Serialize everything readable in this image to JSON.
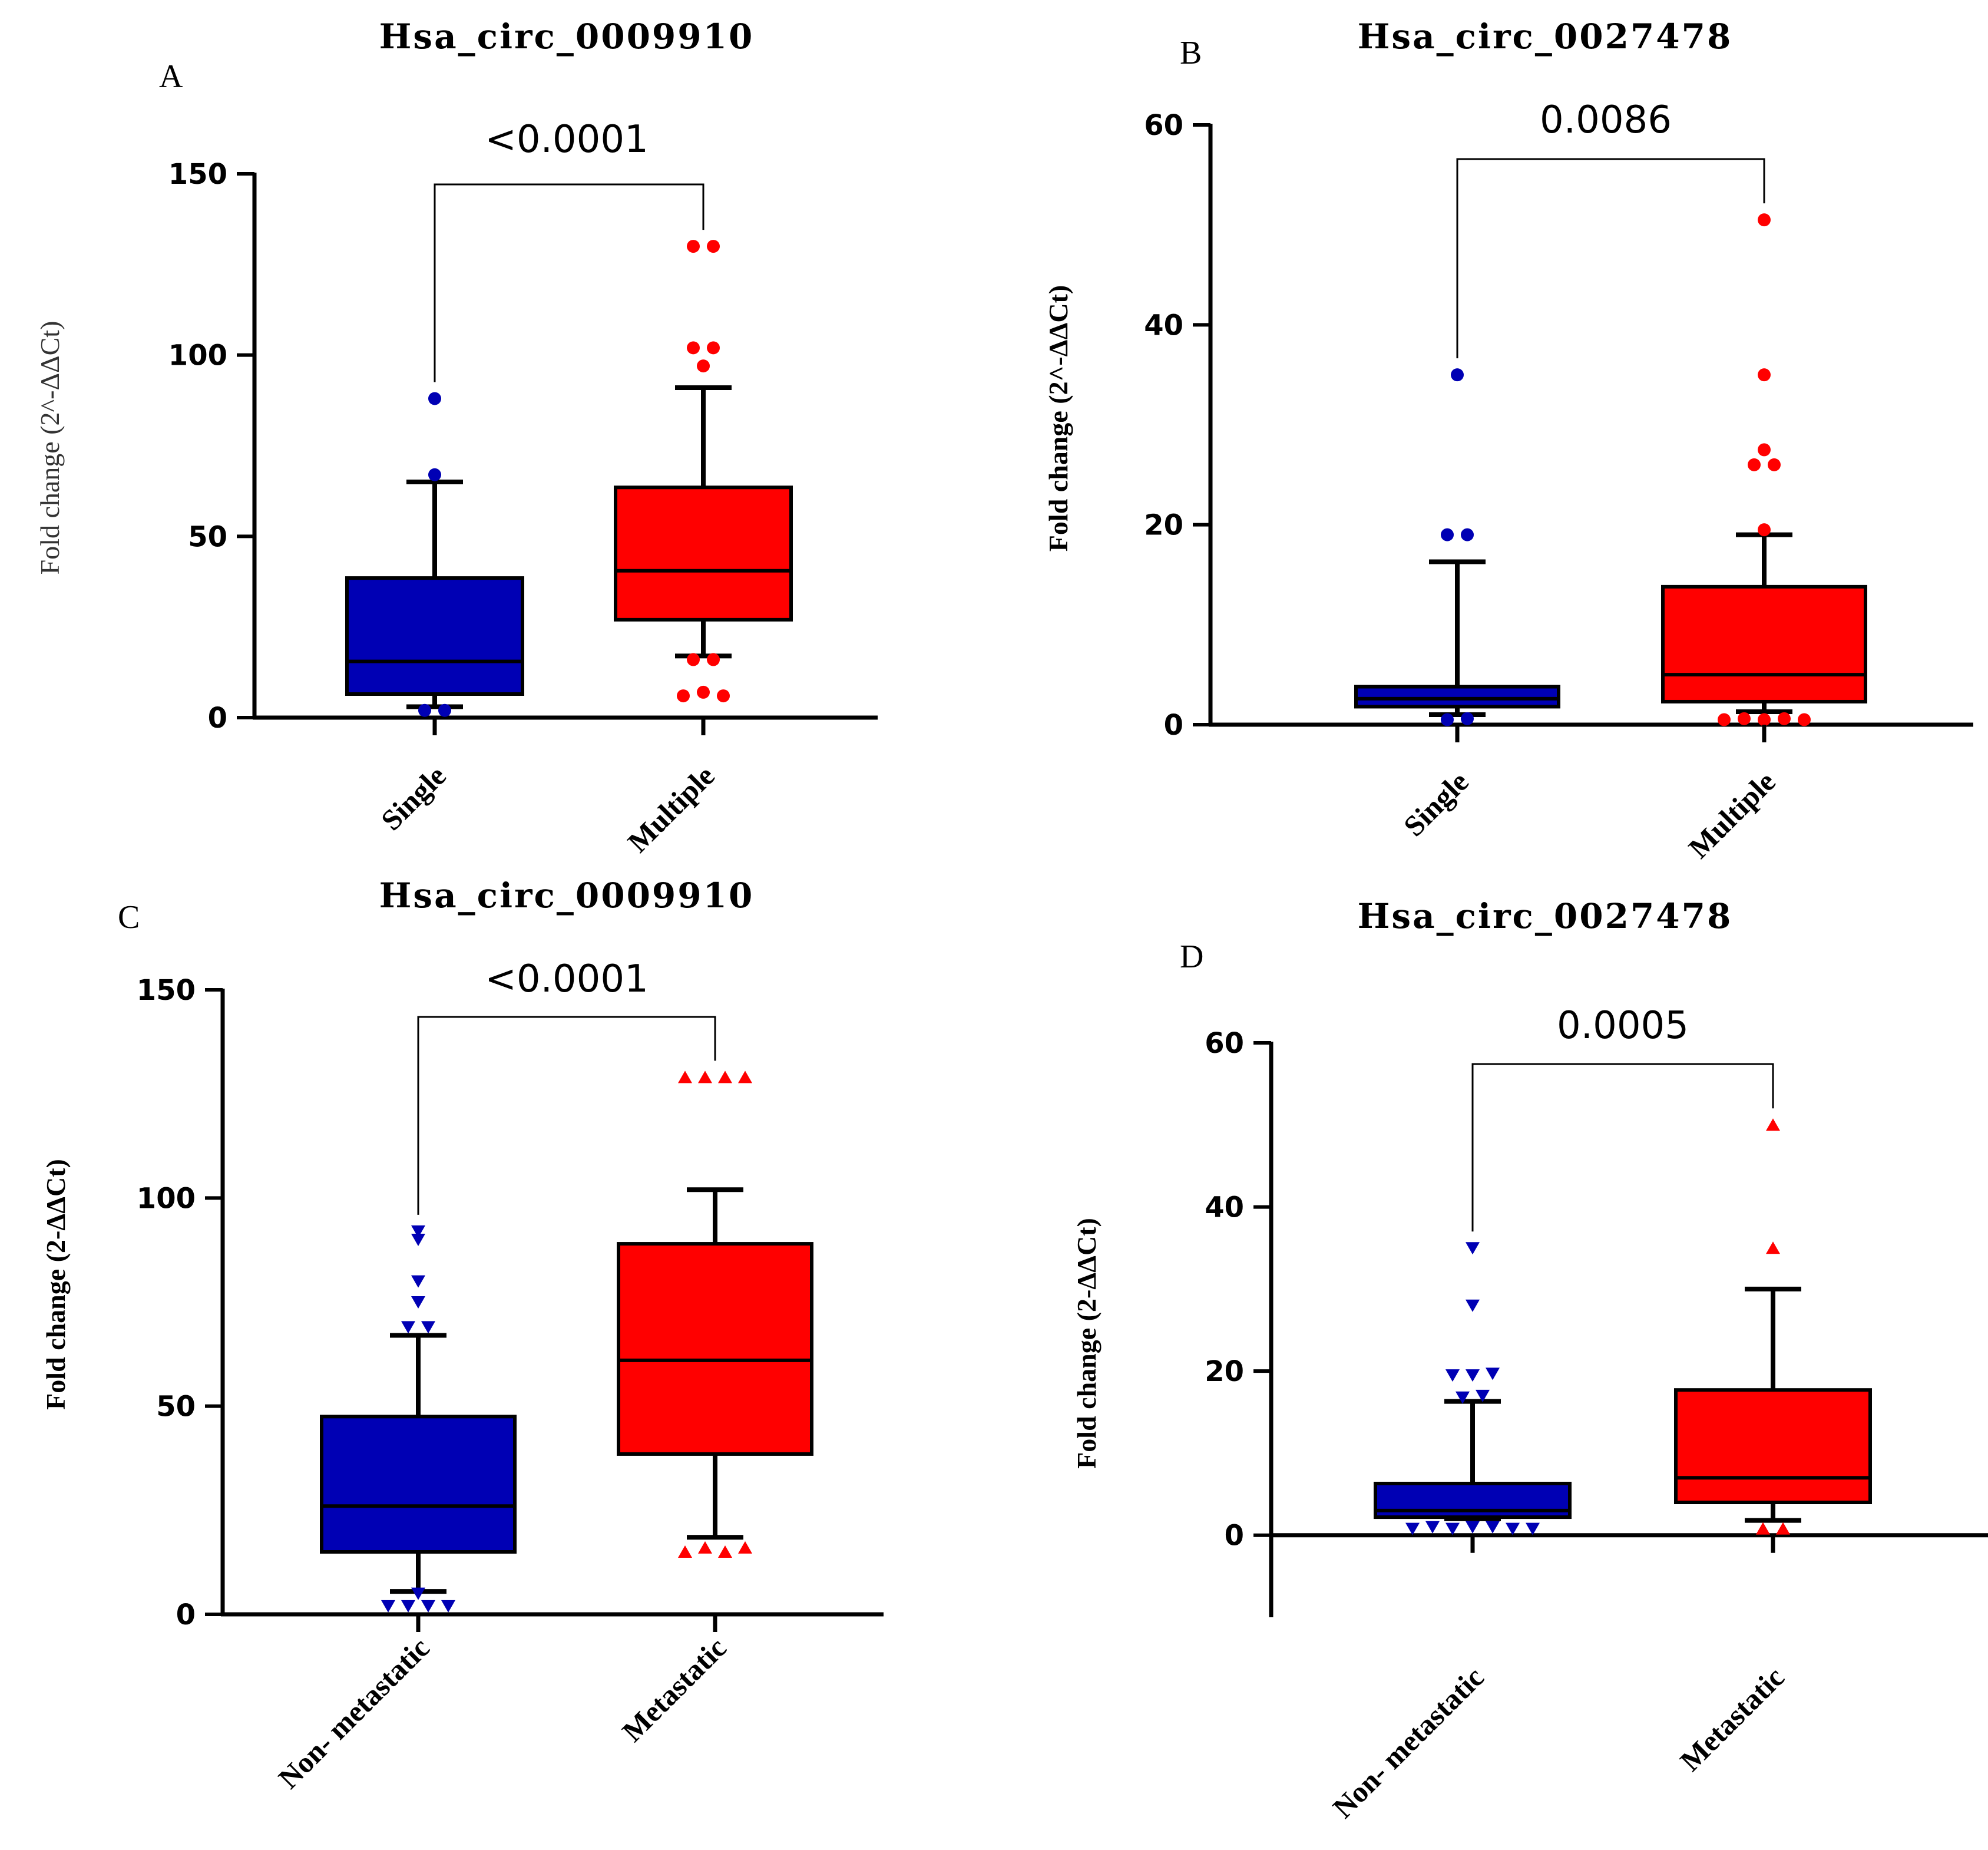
{
  "colors": {
    "blue": "#0000b4",
    "red": "#ff0000",
    "axis": "#000000"
  },
  "chart_data": [
    {
      "panel": "A",
      "type": "box",
      "title": "Hsa_circ_0009910",
      "ylabel": "Fold change (2^-ΔΔCt)",
      "ylabel_style": "light",
      "ylim": [
        0,
        150
      ],
      "yticks": [
        0,
        50,
        100,
        150
      ],
      "categories": [
        "Single",
        "Multiple"
      ],
      "marker": "circle",
      "p_value": "<0.0001",
      "boxes": [
        {
          "name": "Single",
          "color": "#0000b4",
          "whisker_low": 3,
          "q1": 6.5,
          "median": 15.5,
          "q3": 38.5,
          "whisker_high": 65,
          "outliers": [
            2,
            2,
            67,
            88
          ]
        },
        {
          "name": "Multiple",
          "color": "#ff0000",
          "whisker_low": 17,
          "q1": 27,
          "median": 40.5,
          "q3": 63.5,
          "whisker_high": 91,
          "outliers": [
            16,
            16,
            6,
            7,
            6,
            97,
            102,
            102,
            130,
            130
          ]
        }
      ]
    },
    {
      "panel": "B",
      "type": "box",
      "title": "Hsa_circ_0027478",
      "ylabel": "Fold change (2^-ΔΔCt)",
      "ylabel_style": "bold",
      "ylim": [
        0,
        60
      ],
      "yticks": [
        0,
        20,
        40,
        60
      ],
      "categories": [
        "Single",
        "Multiple"
      ],
      "marker": "circle",
      "p_value": "0.0086",
      "boxes": [
        {
          "name": "Single",
          "color": "#0000b4",
          "whisker_low": 1,
          "q1": 1.8,
          "median": 2.6,
          "q3": 3.8,
          "whisker_high": 16.3,
          "outliers": [
            0.5,
            0.6,
            19,
            19,
            35
          ]
        },
        {
          "name": "Multiple",
          "color": "#ff0000",
          "whisker_low": 1.3,
          "q1": 2.3,
          "median": 5,
          "q3": 13.8,
          "whisker_high": 19,
          "outliers": [
            0.5,
            0.6,
            0.5,
            0.6,
            0.5,
            19.5,
            26,
            26,
            27.5,
            35,
            50.5
          ]
        }
      ]
    },
    {
      "panel": "C",
      "type": "box",
      "title": "Hsa_circ_0009910",
      "ylabel": "Fold change (2-ΔΔCt)",
      "ylabel_style": "bold",
      "ylim": [
        0,
        150
      ],
      "yticks": [
        0,
        50,
        100,
        150
      ],
      "categories": [
        "Non- metastatic",
        "Metastatic"
      ],
      "marker": "triangle",
      "p_value": "<0.0001",
      "boxes": [
        {
          "name": "Non- metastatic",
          "color": "#0000b4",
          "whisker_low": 5.5,
          "q1": 15,
          "median": 26,
          "q3": 47.5,
          "whisker_high": 67,
          "outliers": [
            5,
            2,
            2,
            2,
            2,
            69,
            69,
            75,
            80,
            90,
            92
          ]
        },
        {
          "name": "Metastatic",
          "color": "#ff0000",
          "whisker_low": 18.5,
          "q1": 38.5,
          "median": 61,
          "q3": 89,
          "whisker_high": 102,
          "outliers": [
            15,
            16,
            15,
            16,
            129,
            129,
            129,
            129
          ]
        }
      ]
    },
    {
      "panel": "D",
      "type": "box",
      "title": "Hsa_circ_0027478",
      "ylabel": "Fold change (2-ΔΔCt)",
      "ylabel_style": "bold",
      "ylim": [
        -10,
        60
      ],
      "yticks": [
        0,
        20,
        40,
        60
      ],
      "categories": [
        "Non- metastatic",
        "Metastatic"
      ],
      "marker": "triangle",
      "p_value": "0.0005",
      "boxes": [
        {
          "name": "Non- metastatic",
          "color": "#0000b4",
          "whisker_low": 2,
          "q1": 2.2,
          "median": 3,
          "q3": 6.3,
          "whisker_high": 16.3,
          "outliers": [
            0.8,
            1,
            0.8,
            1,
            1,
            0.8,
            0.8,
            16.8,
            17,
            19.5,
            19.5,
            19.7,
            28,
            35
          ]
        },
        {
          "name": "Metastatic",
          "color": "#ff0000",
          "whisker_low": 1.8,
          "q1": 4,
          "median": 7,
          "q3": 17.7,
          "whisker_high": 30,
          "outliers": [
            0.8,
            0.8,
            35,
            50
          ]
        }
      ]
    }
  ]
}
